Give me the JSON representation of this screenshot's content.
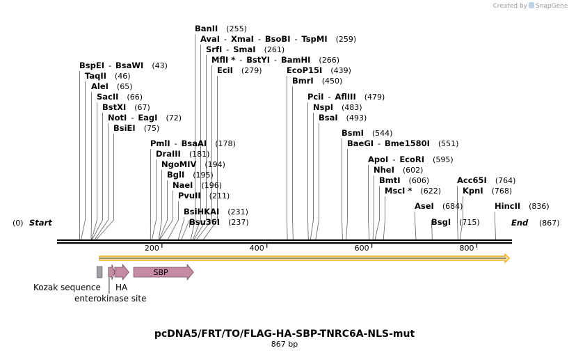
{
  "credit": {
    "prefix": "Created by",
    "brand": "SnapGene"
  },
  "plasmid": {
    "name": "pcDNA5/FRT/TO/FLAG-HA-SBP-TNRC6A-NLS-mut",
    "length_label": "867 bp",
    "length": 867
  },
  "ends": {
    "start_label": "Start",
    "start_pos": "(0)",
    "end_label": "End",
    "end_pos": "(867)"
  },
  "ticks": [
    "200",
    "400",
    "600",
    "800"
  ],
  "sites": [
    {
      "names": [
        "BspEI",
        "BsaWI"
      ],
      "pos": "(43)"
    },
    {
      "names": [
        "TaqII"
      ],
      "pos": "(46)"
    },
    {
      "names": [
        "AleI"
      ],
      "pos": "(65)"
    },
    {
      "names": [
        "SacII"
      ],
      "pos": "(66)"
    },
    {
      "names": [
        "BstXI"
      ],
      "pos": "(67)"
    },
    {
      "names": [
        "NotI",
        "EagI"
      ],
      "pos": "(72)"
    },
    {
      "names": [
        "BsiEI"
      ],
      "pos": "(75)"
    },
    {
      "names": [
        "PmlI",
        "BsaAI"
      ],
      "pos": "(178)"
    },
    {
      "names": [
        "DraIII"
      ],
      "pos": "(181)"
    },
    {
      "names": [
        "NgoMIV"
      ],
      "pos": "(194)"
    },
    {
      "names": [
        "BglI"
      ],
      "pos": "(195)"
    },
    {
      "names": [
        "NaeI"
      ],
      "pos": "(196)"
    },
    {
      "names": [
        "PvuII"
      ],
      "pos": "(211)"
    },
    {
      "names": [
        "BsiHKAI"
      ],
      "pos": "(231)"
    },
    {
      "names": [
        "Bsu36I"
      ],
      "pos": "(237)"
    },
    {
      "names": [
        "BanII"
      ],
      "pos": "(255)"
    },
    {
      "names": [
        "AvaI",
        "XmaI",
        "BsoBI",
        "TspMI"
      ],
      "pos": "(259)"
    },
    {
      "names": [
        "SrfI",
        "SmaI"
      ],
      "pos": "(261)"
    },
    {
      "names": [
        "MflI *",
        "BstYI",
        "BamHI"
      ],
      "pos": "(266)"
    },
    {
      "names": [
        "EciI"
      ],
      "pos": "(279)"
    },
    {
      "names": [
        "EcoP15I"
      ],
      "pos": "(439)"
    },
    {
      "names": [
        "BmrI"
      ],
      "pos": "(450)"
    },
    {
      "names": [
        "PciI",
        "AflIII"
      ],
      "pos": "(479)"
    },
    {
      "names": [
        "NspI"
      ],
      "pos": "(483)"
    },
    {
      "names": [
        "BsaI"
      ],
      "pos": "(493)"
    },
    {
      "names": [
        "BsmI"
      ],
      "pos": "(544)"
    },
    {
      "names": [
        "BaeGI",
        "Bme1580I"
      ],
      "pos": "(551)"
    },
    {
      "names": [
        "ApoI",
        "EcoRI"
      ],
      "pos": "(595)"
    },
    {
      "names": [
        "NheI"
      ],
      "pos": "(602)"
    },
    {
      "names": [
        "BmtI"
      ],
      "pos": "(606)"
    },
    {
      "names": [
        "MscI *"
      ],
      "pos": "(622)"
    },
    {
      "names": [
        "AseI"
      ],
      "pos": "(684)"
    },
    {
      "names": [
        "BsgI"
      ],
      "pos": "(715)"
    },
    {
      "names": [
        "Acc65I"
      ],
      "pos": "(764)"
    },
    {
      "names": [
        "KpnI"
      ],
      "pos": "(768)"
    },
    {
      "names": [
        "HincII"
      ],
      "pos": "(836)"
    }
  ],
  "features": [
    {
      "name": "Kozak sequence",
      "color": "#a0a4a8",
      "start": 76,
      "end": 86
    },
    {
      "name": "enterokinase site",
      "color": "#c48ba2",
      "start": 98,
      "end": 110
    },
    {
      "name": "HA",
      "color": "#c48ba2",
      "start": 110,
      "end": 137
    },
    {
      "name": "SBP",
      "color": "#c48ba2",
      "start": 146,
      "end": 260
    }
  ],
  "orf": {
    "color": "#f2a300",
    "start": 81,
    "end": 867
  }
}
